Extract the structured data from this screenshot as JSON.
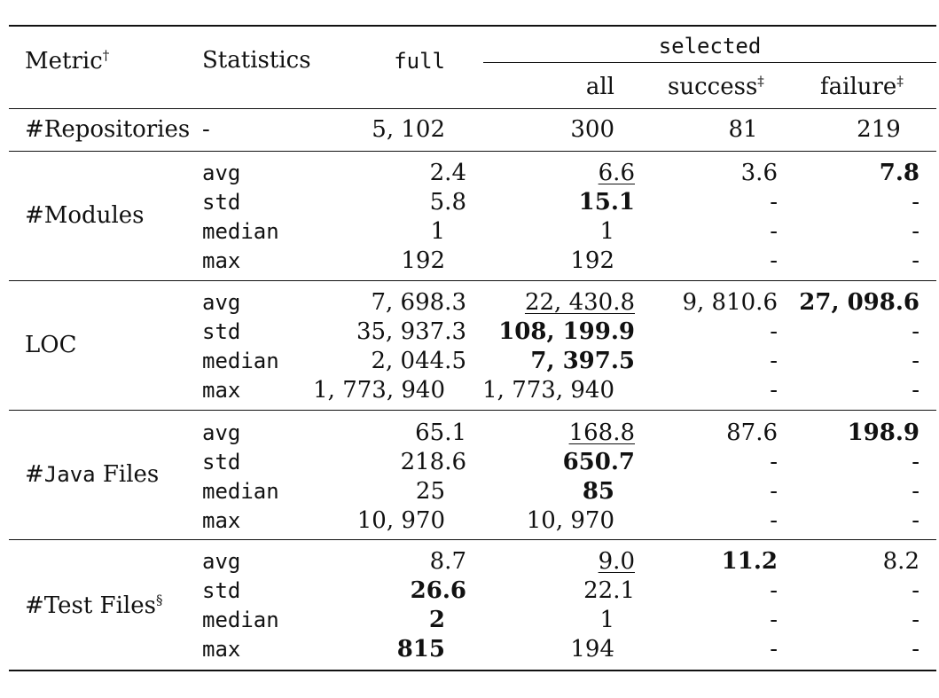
{
  "table": {
    "headers": {
      "metric": "Metric",
      "metric_mark": "†",
      "statistics": "Statistics",
      "full": "full",
      "selected": "selected",
      "all": "all",
      "success": "success",
      "success_mark": "‡",
      "failure": "failure",
      "failure_mark": "‡"
    },
    "repositories": {
      "label": "#Repositories",
      "stat": "-",
      "full": "5, 102",
      "all": "300",
      "success": "81",
      "failure": "219"
    },
    "groups": [
      {
        "label": "#Modules",
        "rows": [
          {
            "stat": "avg",
            "full": "2.4",
            "all": "6.6",
            "success": "3.6",
            "failure": "7.8"
          },
          {
            "stat": "std",
            "full": "5.8",
            "all": "15.1",
            "success": "-",
            "failure": "-"
          },
          {
            "stat": "median",
            "full": "1",
            "all": "1",
            "success": "-",
            "failure": "-"
          },
          {
            "stat": "max",
            "full": "192",
            "all": "192",
            "success": "-",
            "failure": "-"
          }
        ]
      },
      {
        "label": "LOC",
        "rows": [
          {
            "stat": "avg",
            "full": "7, 698.3",
            "all": "22, 430.8",
            "success": "9, 810.6",
            "failure": "27, 098.6"
          },
          {
            "stat": "std",
            "full": "35, 937.3",
            "all": "108, 199.9",
            "success": "-",
            "failure": "-"
          },
          {
            "stat": "median",
            "full": "2, 044.5",
            "all": "7, 397.5",
            "success": "-",
            "failure": "-"
          },
          {
            "stat": "max",
            "full": "1, 773, 940",
            "all": "1, 773, 940",
            "success": "-",
            "failure": "-"
          }
        ]
      },
      {
        "label_prefix": "#",
        "label_mono": "Java",
        "label_suffix": " Files",
        "rows": [
          {
            "stat": "avg",
            "full": "65.1",
            "all": "168.8",
            "success": "87.6",
            "failure": "198.9"
          },
          {
            "stat": "std",
            "full": "218.6",
            "all": "650.7",
            "success": "-",
            "failure": "-"
          },
          {
            "stat": "median",
            "full": "25",
            "all": "85",
            "success": "-",
            "failure": "-"
          },
          {
            "stat": "max",
            "full": "10, 970",
            "all": "10, 970",
            "success": "-",
            "failure": "-"
          }
        ]
      },
      {
        "label": "#Test Files",
        "label_mark": "§",
        "rows": [
          {
            "stat": "avg",
            "full": "8.7",
            "all": "9.0",
            "success": "11.2",
            "failure": "8.2"
          },
          {
            "stat": "std",
            "full": "26.6",
            "all": "22.1",
            "success": "-",
            "failure": "-"
          },
          {
            "stat": "median",
            "full": "2",
            "all": "1",
            "success": "-",
            "failure": "-"
          },
          {
            "stat": "max",
            "full": "815",
            "all": "194",
            "success": "-",
            "failure": "-"
          }
        ]
      }
    ]
  }
}
